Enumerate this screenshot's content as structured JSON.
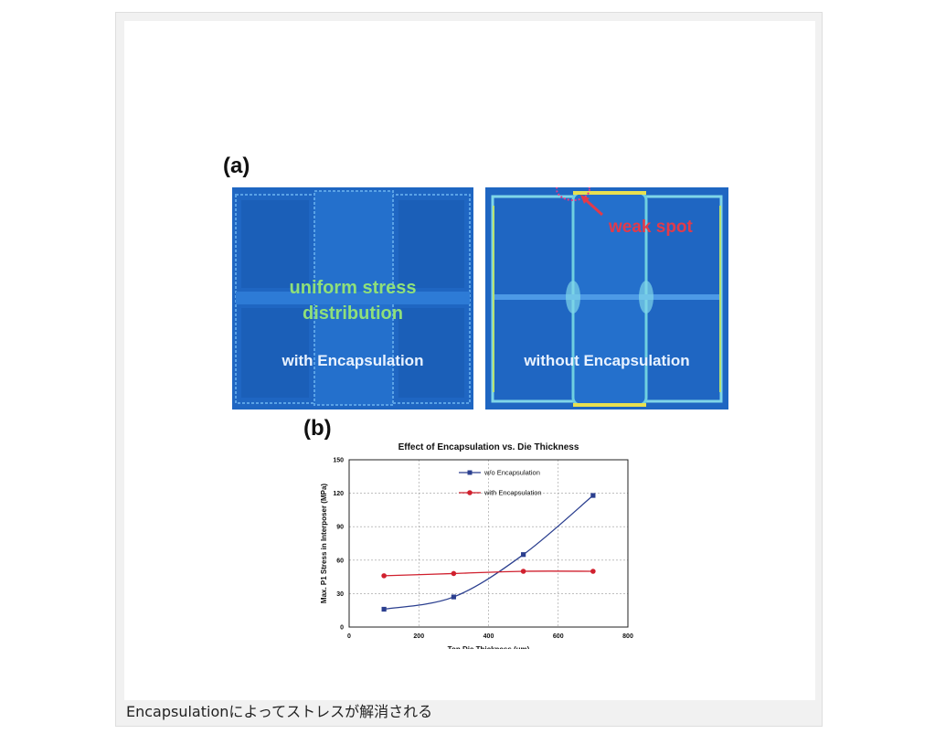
{
  "figure": {
    "panel_a_label": "(a)",
    "panel_b_label": "(b)",
    "left_sim": {
      "line1": "uniform stress",
      "line2": "distribution",
      "caption": "with Encapsulation"
    },
    "right_sim": {
      "annotation": "weak spot",
      "caption": "without Encapsulation"
    }
  },
  "chart_data": {
    "type": "line",
    "title": "Effect of Encapsulation vs. Die Thickness",
    "xlabel": "Top Die Thickness (um)",
    "ylabel": "Max. P1 Stress in Interposer (MPa)",
    "xlim": [
      0,
      800
    ],
    "ylim": [
      0,
      150
    ],
    "x_ticks": [
      0,
      200,
      400,
      600,
      800
    ],
    "y_ticks": [
      0,
      30,
      60,
      90,
      120,
      150
    ],
    "grid": true,
    "legend_position": "top-right",
    "series": [
      {
        "name": "w/o Encapsulation",
        "color": "#2b3f8f",
        "marker": "square",
        "x": [
          100,
          300,
          500,
          700
        ],
        "y": [
          16,
          27,
          65,
          118
        ]
      },
      {
        "name": "with Encapsulation",
        "color": "#d0202e",
        "marker": "circle",
        "x": [
          100,
          300,
          500,
          700
        ],
        "y": [
          46,
          48,
          50,
          50
        ]
      }
    ]
  },
  "caption": "Encapsulationによってストレスが解消される"
}
